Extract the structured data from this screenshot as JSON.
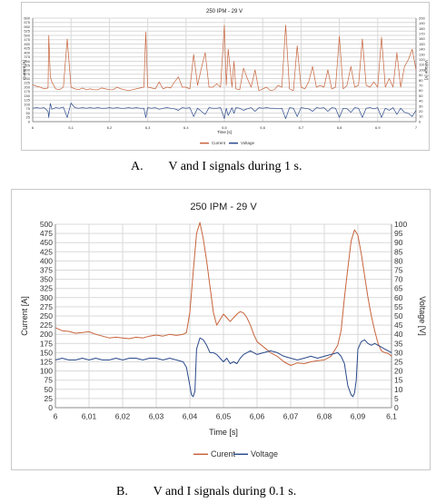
{
  "captions": {
    "a": "A.        V and I signals during 1 s.",
    "b": "B.        V and I signals during 0.1 s."
  },
  "colors": {
    "current": "#c8643c",
    "voltage": "#2b4a8c",
    "grid": "#d9d9d9",
    "axis": "#8c8c8c"
  },
  "chart_data": [
    {
      "type": "line",
      "title": "250 IPM - 29 V",
      "xlabel": "Time [s]",
      "ylabel_left": "Current [A]",
      "ylabel_right": "Voltage [V]",
      "xlim": [
        6,
        7
      ],
      "ylim_left": [
        0,
        600
      ],
      "ylim_right": [
        0,
        200
      ],
      "x_ticks": [
        "6",
        "6,1",
        "6,2",
        "6,3",
        "6,4",
        "6,5",
        "6,6",
        "6,7",
        "6,8",
        "6,9",
        "7"
      ],
      "y_ticks_left": [
        "0",
        "25",
        "50",
        "75",
        "100",
        "125",
        "150",
        "175",
        "200",
        "225",
        "250",
        "275",
        "300",
        "325",
        "350",
        "375",
        "400",
        "425",
        "450",
        "475",
        "500",
        "525",
        "550",
        "575",
        "600"
      ],
      "y_ticks_right": [
        "0",
        "10",
        "20",
        "30",
        "40",
        "50",
        "60",
        "70",
        "80",
        "90",
        "100",
        "110",
        "120",
        "130",
        "140",
        "150",
        "160",
        "170",
        "180",
        "190",
        "200"
      ],
      "grid": true,
      "legend_position": "bottom",
      "series": [
        {
          "name": "Current",
          "axis": "left",
          "color": "#c8643c",
          "x": [
            6.0,
            6.01,
            6.02,
            6.03,
            6.04,
            6.042,
            6.046,
            6.05,
            6.06,
            6.07,
            6.08,
            6.09,
            6.1,
            6.11,
            6.12,
            6.13,
            6.14,
            6.15,
            6.16,
            6.17,
            6.18,
            6.19,
            6.2,
            6.21,
            6.22,
            6.23,
            6.24,
            6.25,
            6.26,
            6.27,
            6.28,
            6.29,
            6.295,
            6.3,
            6.31,
            6.32,
            6.33,
            6.34,
            6.35,
            6.36,
            6.37,
            6.38,
            6.39,
            6.4,
            6.41,
            6.42,
            6.43,
            6.44,
            6.45,
            6.46,
            6.47,
            6.48,
            6.49,
            6.5,
            6.505,
            6.51,
            6.52,
            6.525,
            6.53,
            6.54,
            6.55,
            6.56,
            6.57,
            6.58,
            6.59,
            6.6,
            6.61,
            6.62,
            6.63,
            6.64,
            6.65,
            6.66,
            6.67,
            6.68,
            6.69,
            6.7,
            6.71,
            6.72,
            6.73,
            6.74,
            6.75,
            6.76,
            6.77,
            6.78,
            6.79,
            6.8,
            6.81,
            6.82,
            6.83,
            6.84,
            6.85,
            6.86,
            6.87,
            6.88,
            6.89,
            6.9,
            6.91,
            6.92,
            6.93,
            6.94,
            6.95,
            6.96,
            6.97,
            6.98,
            6.99,
            7.0
          ],
          "y": [
            215,
            205,
            200,
            190,
            195,
            500,
            260,
            230,
            190,
            185,
            200,
            480,
            200,
            190,
            185,
            195,
            185,
            190,
            185,
            185,
            195,
            190,
            185,
            185,
            200,
            190,
            185,
            180,
            185,
            190,
            195,
            200,
            520,
            200,
            195,
            190,
            230,
            190,
            200,
            195,
            230,
            260,
            200,
            200,
            190,
            390,
            210,
            310,
            400,
            200,
            200,
            220,
            200,
            560,
            210,
            420,
            200,
            350,
            190,
            185,
            310,
            250,
            200,
            300,
            180,
            190,
            200,
            180,
            185,
            210,
            200,
            560,
            190,
            180,
            440,
            200,
            190,
            230,
            320,
            200,
            210,
            200,
            300,
            190,
            200,
            495,
            190,
            210,
            320,
            200,
            210,
            480,
            210,
            200,
            230,
            200,
            490,
            200,
            250,
            200,
            400,
            200,
            320,
            360,
            420,
            300
          ]
        },
        {
          "name": "Voltage",
          "axis": "right",
          "color": "#2b4a8c",
          "x": [
            6.0,
            6.01,
            6.02,
            6.03,
            6.04,
            6.042,
            6.046,
            6.05,
            6.06,
            6.07,
            6.08,
            6.09,
            6.1,
            6.11,
            6.12,
            6.13,
            6.14,
            6.15,
            6.16,
            6.17,
            6.18,
            6.19,
            6.2,
            6.21,
            6.22,
            6.23,
            6.24,
            6.25,
            6.26,
            6.27,
            6.28,
            6.29,
            6.295,
            6.3,
            6.31,
            6.32,
            6.33,
            6.34,
            6.35,
            6.36,
            6.37,
            6.38,
            6.39,
            6.4,
            6.41,
            6.42,
            6.43,
            6.44,
            6.45,
            6.46,
            6.47,
            6.48,
            6.49,
            6.5,
            6.505,
            6.51,
            6.52,
            6.525,
            6.53,
            6.54,
            6.55,
            6.56,
            6.57,
            6.58,
            6.59,
            6.6,
            6.61,
            6.62,
            6.63,
            6.64,
            6.65,
            6.66,
            6.67,
            6.68,
            6.69,
            6.7,
            6.71,
            6.72,
            6.73,
            6.74,
            6.75,
            6.76,
            6.77,
            6.78,
            6.79,
            6.8,
            6.81,
            6.82,
            6.83,
            6.84,
            6.85,
            6.86,
            6.87,
            6.88,
            6.89,
            6.9,
            6.91,
            6.92,
            6.93,
            6.94,
            6.95,
            6.96,
            6.97,
            6.98,
            6.99,
            7.0
          ],
          "y": [
            26,
            27,
            26,
            27,
            20,
            8,
            35,
            24,
            27,
            26,
            28,
            8,
            36,
            27,
            26,
            27,
            26,
            27,
            26,
            27,
            26,
            26,
            27,
            26,
            27,
            26,
            26,
            27,
            26,
            27,
            26,
            26,
            8,
            27,
            26,
            27,
            24,
            26,
            27,
            26,
            25,
            22,
            27,
            26,
            27,
            10,
            26,
            20,
            14,
            27,
            26,
            26,
            27,
            6,
            26,
            12,
            27,
            16,
            27,
            26,
            22,
            25,
            27,
            20,
            27,
            26,
            27,
            26,
            26,
            25,
            26,
            6,
            27,
            26,
            10,
            27,
            26,
            25,
            20,
            27,
            26,
            27,
            20,
            27,
            26,
            8,
            26,
            25,
            18,
            27,
            26,
            8,
            26,
            27,
            25,
            27,
            8,
            26,
            22,
            27,
            14,
            26,
            18,
            16,
            10,
            22
          ]
        }
      ]
    },
    {
      "type": "line",
      "title": "250 IPM - 29 V",
      "xlabel": "Time [s]",
      "ylabel_left": "Current [A]",
      "ylabel_right": "Voltage [V]",
      "xlim": [
        6,
        6.1
      ],
      "ylim_left": [
        0,
        500
      ],
      "ylim_right": [
        0,
        100
      ],
      "x_ticks": [
        "6",
        "6,01",
        "6,02",
        "6,03",
        "6,04",
        "6,05",
        "6,06",
        "6,07",
        "6,08",
        "6,09",
        "6,1"
      ],
      "y_ticks_left": [
        "0",
        "25",
        "50",
        "75",
        "100",
        "125",
        "150",
        "175",
        "200",
        "225",
        "250",
        "275",
        "300",
        "325",
        "350",
        "375",
        "400",
        "425",
        "450",
        "475",
        "500"
      ],
      "y_ticks_right": [
        "0",
        "5",
        "10",
        "15",
        "20",
        "25",
        "30",
        "35",
        "40",
        "45",
        "50",
        "55",
        "60",
        "65",
        "70",
        "75",
        "80",
        "85",
        "90",
        "95",
        "100"
      ],
      "grid": true,
      "legend_position": "bottom",
      "series": [
        {
          "name": "Curent",
          "axis": "left",
          "color": "#c8643c",
          "x": [
            6.0,
            6.002,
            6.004,
            6.006,
            6.008,
            6.01,
            6.012,
            6.014,
            6.016,
            6.018,
            6.02,
            6.022,
            6.024,
            6.026,
            6.028,
            6.03,
            6.032,
            6.034,
            6.036,
            6.038,
            6.039,
            6.04,
            6.041,
            6.042,
            6.043,
            6.044,
            6.045,
            6.046,
            6.047,
            6.048,
            6.049,
            6.05,
            6.051,
            6.052,
            6.053,
            6.054,
            6.055,
            6.056,
            6.057,
            6.058,
            6.059,
            6.06,
            6.062,
            6.064,
            6.066,
            6.068,
            6.07,
            6.072,
            6.074,
            6.076,
            6.078,
            6.08,
            6.082,
            6.084,
            6.085,
            6.086,
            6.087,
            6.088,
            6.089,
            6.09,
            6.091,
            6.092,
            6.093,
            6.094,
            6.095,
            6.096,
            6.097,
            6.098,
            6.099,
            6.1
          ],
          "y": [
            218,
            210,
            208,
            203,
            205,
            207,
            200,
            195,
            190,
            192,
            190,
            188,
            192,
            190,
            195,
            198,
            195,
            200,
            197,
            200,
            205,
            260,
            370,
            475,
            505,
            460,
            400,
            330,
            260,
            225,
            240,
            255,
            245,
            235,
            245,
            255,
            262,
            258,
            245,
            225,
            200,
            180,
            165,
            150,
            140,
            125,
            115,
            122,
            120,
            125,
            128,
            130,
            140,
            170,
            210,
            300,
            380,
            455,
            485,
            470,
            420,
            360,
            300,
            250,
            210,
            175,
            155,
            150,
            148,
            140
          ]
        },
        {
          "name": "Voltage",
          "axis": "right",
          "color": "#2b4a8c",
          "x": [
            6.0,
            6.002,
            6.004,
            6.006,
            6.008,
            6.01,
            6.012,
            6.014,
            6.016,
            6.018,
            6.02,
            6.022,
            6.024,
            6.026,
            6.028,
            6.03,
            6.032,
            6.034,
            6.036,
            6.038,
            6.039,
            6.04,
            6.0405,
            6.041,
            6.0415,
            6.042,
            6.043,
            6.044,
            6.045,
            6.046,
            6.047,
            6.048,
            6.049,
            6.05,
            6.051,
            6.052,
            6.053,
            6.054,
            6.055,
            6.056,
            6.057,
            6.058,
            6.059,
            6.06,
            6.062,
            6.064,
            6.066,
            6.068,
            6.07,
            6.072,
            6.074,
            6.076,
            6.078,
            6.08,
            6.082,
            6.084,
            6.085,
            6.086,
            6.087,
            6.088,
            6.0885,
            6.089,
            6.0895,
            6.09,
            6.091,
            6.092,
            6.093,
            6.094,
            6.095,
            6.096,
            6.097,
            6.098,
            6.099,
            6.1
          ],
          "y": [
            26,
            27,
            26,
            26,
            27,
            26,
            27,
            26,
            26,
            27,
            26,
            27,
            27,
            26,
            27,
            27,
            26,
            27,
            26,
            25,
            22,
            12,
            7,
            6,
            9,
            32,
            38,
            37,
            34,
            30,
            30,
            29,
            27,
            25,
            27,
            24,
            25,
            24,
            27,
            29,
            30,
            31,
            30,
            29,
            30,
            31,
            30,
            28,
            27,
            26,
            27,
            28,
            27,
            28,
            29,
            30,
            28,
            24,
            12,
            7,
            6,
            8,
            15,
            32,
            36,
            37,
            35,
            34,
            35,
            34,
            33,
            32,
            31,
            30
          ]
        }
      ]
    }
  ]
}
